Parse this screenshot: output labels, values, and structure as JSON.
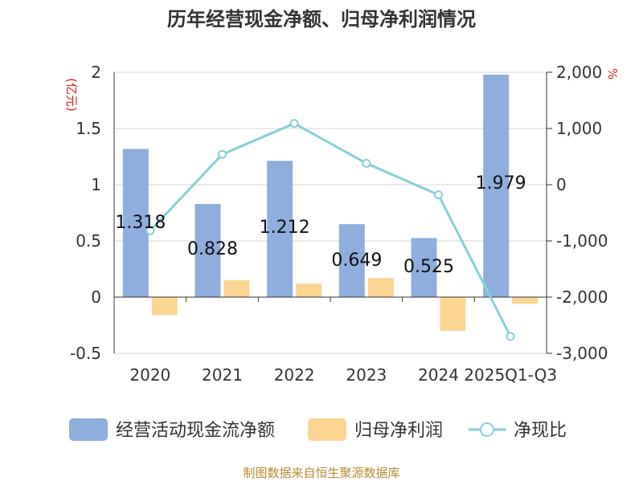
{
  "chart_data": {
    "type": "bar",
    "title": "历年经营现金净额、归母净利润情况",
    "categories": [
      "2020",
      "2021",
      "2022",
      "2023",
      "2024",
      "2025Q1-Q3"
    ],
    "y_left": {
      "unit": "(亿元)",
      "ylim": [
        -0.5,
        2
      ],
      "ticks": [
        2,
        1.5,
        1,
        0.5,
        0,
        -0.5
      ],
      "tick_labels": [
        "2",
        "1.5",
        "1",
        "0.5",
        "0",
        "-0.5"
      ]
    },
    "y_right": {
      "unit": "%",
      "ylim": [
        -3000,
        2000
      ],
      "ticks": [
        2000,
        1000,
        0,
        -1000,
        -2000,
        -3000
      ],
      "tick_labels": [
        "2,000",
        "1,000",
        "0",
        "-1,000",
        "-2,000",
        "-3,000"
      ]
    },
    "series": [
      {
        "name": "经营活动现金流净额",
        "type": "bar",
        "axis": "left",
        "color": "#8eaedb",
        "values": [
          1.318,
          0.828,
          1.212,
          0.649,
          0.525,
          1.979
        ],
        "labels": [
          "1.318",
          "0.828",
          "1.212",
          "0.649",
          "0.525",
          "1.979"
        ]
      },
      {
        "name": "归母净利润",
        "type": "bar",
        "axis": "left",
        "color": "#fdd593",
        "values": [
          -0.16,
          0.15,
          0.12,
          0.17,
          -0.3,
          -0.06
        ]
      },
      {
        "name": "净现比",
        "type": "line",
        "axis": "right",
        "color": "#86d0d8",
        "values": [
          -820,
          540,
          1090,
          380,
          -180,
          -2700
        ]
      }
    ],
    "legend_position": "bottom",
    "grid": true
  },
  "footer": {
    "source": "制图数据来自恒生聚源数据库"
  }
}
